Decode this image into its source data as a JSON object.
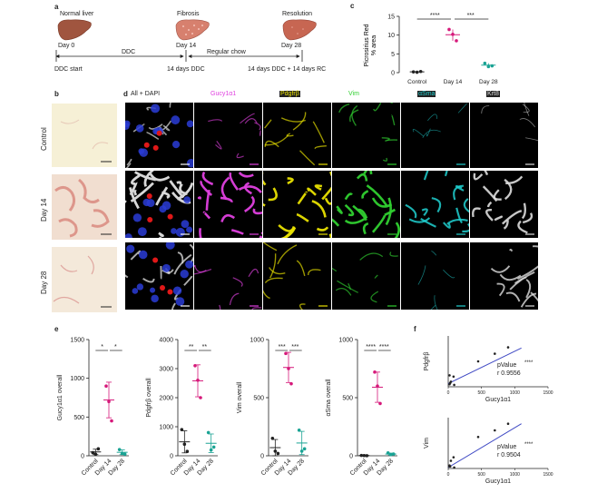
{
  "panel_a": {
    "letter": "a",
    "timepoints": [
      {
        "title": "Normal liver",
        "day": "Day 0"
      },
      {
        "title": "Fibrosis",
        "day": "Day 14"
      },
      {
        "title": "Resolution",
        "day": "Day 28"
      }
    ],
    "arrow_ddc": "DDC",
    "arrow_chow": "Regular chow",
    "start_label": "DDC start",
    "mid_label": "14 days DDC",
    "end_label": "14 days DDC + 14 days RC"
  },
  "panel_b": {
    "letter": "b",
    "rows": [
      "Control",
      "Day 14",
      "Day 28"
    ]
  },
  "panel_c": {
    "letter": "c",
    "ylabel_line1": "Picrosirius Red",
    "ylabel_line2": "% area",
    "sig1": "****",
    "sig2": "***",
    "chart_data": {
      "type": "scatter",
      "categories": [
        "Control",
        "Day 14",
        "Day 28"
      ],
      "ylim": [
        0,
        15
      ],
      "yticks": [
        "0",
        "5",
        "10",
        "15"
      ],
      "points": [
        [
          0.2,
          0.1,
          0.3
        ],
        [
          11.5,
          10.2,
          8.5
        ],
        [
          2.5,
          1.6,
          1.8
        ]
      ],
      "means": [
        0.2,
        10.1,
        2.0
      ],
      "colors": [
        "#222222",
        "#d6197a",
        "#1aa394"
      ]
    }
  },
  "panel_d": {
    "letter": "d",
    "channels": [
      {
        "label": "All + DAPI",
        "color": "#ffffff"
      },
      {
        "label": "Gucy1α1",
        "color": "#e040e0"
      },
      {
        "label": "Pdgfrβ",
        "color": "#e8e000"
      },
      {
        "label": "Vim",
        "color": "#30d030"
      },
      {
        "label": "αSma",
        "color": "#20d0d0"
      },
      {
        "label": "Krt8",
        "color": "#dddddd"
      }
    ],
    "rows": [
      "Control",
      "Day 14",
      "Day 28"
    ]
  },
  "panel_e": {
    "letter": "e",
    "chart_data": [
      {
        "type": "scatter",
        "ylabel": "Gucy1α1 overall",
        "ylim": [
          0,
          1500
        ],
        "yticks": [
          "0",
          "500",
          "1000",
          "1500"
        ],
        "categories": [
          "Control",
          "Day 14",
          "Day 28"
        ],
        "points": [
          [
            40,
            20,
            90
          ],
          [
            900,
            700,
            450
          ],
          [
            80,
            30,
            20
          ]
        ],
        "means": [
          50,
          720,
          45
        ],
        "sd": [
          35,
          230,
          30
        ],
        "sig": [
          "*",
          "*"
        ]
      },
      {
        "type": "scatter",
        "ylabel": "Pdgfrβ overall",
        "ylim": [
          0,
          4000
        ],
        "yticks": [
          "0",
          "1000",
          "2000",
          "3000",
          "4000"
        ],
        "categories": [
          "Control",
          "Day 14",
          "Day 28"
        ],
        "points": [
          [
            900,
            400,
            150
          ],
          [
            3100,
            2600,
            2000
          ],
          [
            800,
            200,
            300
          ]
        ],
        "means": [
          480,
          2580,
          430
        ],
        "sd": [
          380,
          550,
          320
        ],
        "sig": [
          "**",
          "**"
        ]
      },
      {
        "type": "scatter",
        "ylabel": "Vim overall",
        "ylim": [
          0,
          1000
        ],
        "yticks": [
          "0",
          "500",
          "1000"
        ],
        "categories": [
          "Control",
          "Day 14",
          "Day 28"
        ],
        "points": [
          [
            150,
            40,
            20
          ],
          [
            880,
            750,
            620
          ],
          [
            220,
            40,
            60
          ]
        ],
        "means": [
          70,
          760,
          110
        ],
        "sd": [
          70,
          130,
          100
        ],
        "sig": [
          "***",
          "***"
        ]
      },
      {
        "type": "scatter",
        "ylabel": "αSma overall",
        "ylim": [
          0,
          1000
        ],
        "yticks": [
          "0",
          "500",
          "1000"
        ],
        "categories": [
          "Control",
          "Day 14",
          "Day 28"
        ],
        "points": [
          [
            3,
            2,
            1
          ],
          [
            720,
            600,
            450
          ],
          [
            25,
            10,
            15
          ]
        ],
        "means": [
          2,
          590,
          15
        ],
        "sd": [
          1,
          130,
          8
        ],
        "sig": [
          "****",
          "****"
        ]
      }
    ],
    "colors": [
      "#222222",
      "#d6197a",
      "#1aa394"
    ]
  },
  "panel_f": {
    "letter": "f",
    "chart_data": [
      {
        "type": "scatter",
        "ylabel": "Pdgfrβ",
        "xlabel": "Gucy1α1",
        "xlim": [
          0,
          1500
        ],
        "xticks": [
          "0",
          "500",
          "1000",
          "1500"
        ],
        "ylim": [
          0,
          4000
        ],
        "points": [
          [
            20,
            900
          ],
          [
            40,
            400
          ],
          [
            90,
            150
          ],
          [
            450,
            2000
          ],
          [
            700,
            2600
          ],
          [
            900,
            3100
          ],
          [
            30,
            300
          ],
          [
            80,
            800
          ],
          [
            20,
            200
          ]
        ],
        "fit": [
          [
            0,
            250
          ],
          [
            1100,
            3050
          ]
        ],
        "pvalue_label": "pValue",
        "pvalue_stars": "****",
        "r_label": "r 0.9556"
      },
      {
        "type": "scatter",
        "ylabel": "Vim",
        "xlabel": "Gucy1α1",
        "xlim": [
          0,
          1500
        ],
        "xticks": [
          "0",
          "500",
          "1000",
          "1500"
        ],
        "ylim": [
          0,
          1000
        ],
        "points": [
          [
            20,
            40
          ],
          [
            40,
            150
          ],
          [
            90,
            20
          ],
          [
            450,
            620
          ],
          [
            700,
            750
          ],
          [
            900,
            880
          ],
          [
            30,
            40
          ],
          [
            80,
            220
          ],
          [
            20,
            60
          ]
        ],
        "fit": [
          [
            0,
            20
          ],
          [
            1100,
            880
          ]
        ],
        "pvalue_label": "pValue",
        "pvalue_stars": "****",
        "r_label": "r 0.9504"
      }
    ],
    "line_color": "#3f49c4"
  }
}
